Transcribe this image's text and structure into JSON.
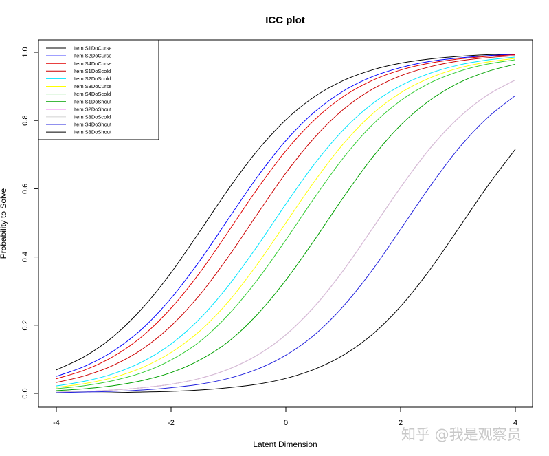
{
  "watermark": "知乎 @我是观察员",
  "chart_data": {
    "type": "line",
    "title": "ICC plot",
    "xlabel": "Latent Dimension",
    "ylabel": "Probability to Solve",
    "xlim": [
      -4,
      4
    ],
    "ylim": [
      0,
      1
    ],
    "xticks": [
      -4,
      -2,
      0,
      2,
      4
    ],
    "yticks": [
      0.0,
      0.2,
      0.4,
      0.6,
      0.8,
      1.0
    ],
    "ytick_labels": [
      "0.0",
      "0.2",
      "0.4",
      "0.6",
      "0.8",
      "1.0"
    ],
    "grid": false,
    "legend_position": "top-left",
    "curve_model": "P(theta) = 1 / (1 + exp(-(theta - b))), sampled at the x values below",
    "x": [
      -4,
      -3.5,
      -3,
      -2.5,
      -2,
      -1.5,
      -1,
      -0.5,
      0,
      0.5,
      1,
      1.5,
      2,
      2.5,
      3,
      3.5,
      4
    ],
    "series": [
      {
        "name": "Item S1DoCurse",
        "color": "#000000",
        "values": [
          0.069,
          0.109,
          0.168,
          0.25,
          0.354,
          0.475,
          0.599,
          0.711,
          0.802,
          0.87,
          0.917,
          0.948,
          0.968,
          0.98,
          0.988,
          0.993,
          0.995
        ]
      },
      {
        "name": "Item S2DoCurse",
        "color": "#0000ff",
        "values": [
          0.05,
          0.08,
          0.125,
          0.19,
          0.279,
          0.389,
          0.512,
          0.634,
          0.741,
          0.825,
          0.886,
          0.928,
          0.955,
          0.973,
          0.983,
          0.99,
          0.994
        ]
      },
      {
        "name": "Item S4DoCurse",
        "color": "#e00000",
        "values": [
          0.043,
          0.069,
          0.109,
          0.168,
          0.25,
          0.354,
          0.475,
          0.599,
          0.711,
          0.802,
          0.87,
          0.917,
          0.948,
          0.968,
          0.98,
          0.988,
          0.993
        ]
      },
      {
        "name": "Item S1DoScold",
        "color": "#cc0000",
        "values": [
          0.032,
          0.052,
          0.083,
          0.13,
          0.198,
          0.289,
          0.401,
          0.525,
          0.646,
          0.75,
          0.832,
          0.891,
          0.931,
          0.957,
          0.974,
          0.984,
          0.99
        ]
      },
      {
        "name": "Item S2DoScold",
        "color": "#00e5ff",
        "values": [
          0.022,
          0.036,
          0.058,
          0.093,
          0.145,
          0.219,
          0.316,
          0.431,
          0.555,
          0.673,
          0.772,
          0.848,
          0.902,
          0.938,
          0.962,
          0.977,
          0.986
        ]
      },
      {
        "name": "Item S3DoCurse",
        "color": "#ffff00",
        "values": [
          0.018,
          0.029,
          0.047,
          0.076,
          0.12,
          0.183,
          0.269,
          0.378,
          0.5,
          0.622,
          0.731,
          0.818,
          0.881,
          0.924,
          0.953,
          0.971,
          0.982
        ]
      },
      {
        "name": "Item S4DoScold",
        "color": "#33cc33",
        "values": [
          0.014,
          0.023,
          0.038,
          0.061,
          0.098,
          0.152,
          0.231,
          0.332,
          0.45,
          0.574,
          0.69,
          0.786,
          0.858,
          0.909,
          0.943,
          0.965,
          0.978
        ]
      },
      {
        "name": "Item S1DoShout",
        "color": "#00a000",
        "values": [
          0.008,
          0.014,
          0.023,
          0.038,
          0.061,
          0.098,
          0.152,
          0.231,
          0.332,
          0.45,
          0.574,
          0.69,
          0.786,
          0.858,
          0.909,
          0.943,
          0.965
        ]
      },
      {
        "name": "Item S2DoShout",
        "color": "#e000e0",
        "values": [
          0.004,
          0.006,
          0.01,
          0.017,
          0.027,
          0.044,
          0.071,
          0.112,
          0.172,
          0.255,
          0.36,
          0.481,
          0.604,
          0.716,
          0.806,
          0.873,
          0.919
        ]
      },
      {
        "name": "Item S3DoScold",
        "color": "#d0d0d0",
        "values": [
          0.004,
          0.006,
          0.01,
          0.017,
          0.027,
          0.044,
          0.071,
          0.112,
          0.172,
          0.255,
          0.36,
          0.481,
          0.604,
          0.716,
          0.806,
          0.873,
          0.919
        ]
      },
      {
        "name": "Item S4DoShout",
        "color": "#2222dd",
        "values": [
          0.002,
          0.004,
          0.006,
          0.01,
          0.017,
          0.027,
          0.044,
          0.071,
          0.112,
          0.172,
          0.255,
          0.36,
          0.481,
          0.604,
          0.716,
          0.806,
          0.873
        ]
      },
      {
        "name": "Item S3DoShout",
        "color": "#000000",
        "values": [
          0.001,
          0.001,
          0.002,
          0.004,
          0.006,
          0.01,
          0.017,
          0.027,
          0.044,
          0.071,
          0.112,
          0.172,
          0.255,
          0.36,
          0.481,
          0.604,
          0.716
        ]
      }
    ]
  }
}
